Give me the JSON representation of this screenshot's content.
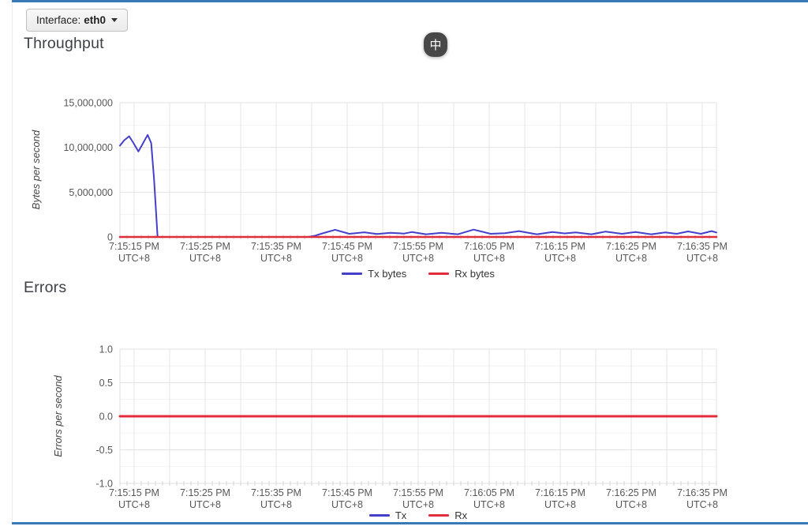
{
  "page": {
    "interface_button": {
      "label_prefix": "Interface: ",
      "value": "eth0"
    },
    "ime_badge": "中",
    "accent_color": "#3a79b8"
  },
  "chart_data": [
    {
      "type": "line",
      "title": "Throughput",
      "ylabel": "Bytes per second",
      "ylim": [
        0,
        15000000
      ],
      "yticks": [
        {
          "v": 0,
          "label": "0"
        },
        {
          "v": 5000000,
          "label": "5,000,000"
        },
        {
          "v": 10000000,
          "label": "10,000,000"
        },
        {
          "v": 15000000,
          "label": "15,000,000"
        }
      ],
      "yticks_minor": [
        2500000,
        7500000,
        12500000
      ],
      "xlim": [
        0,
        84
      ],
      "grid_start": 2,
      "grid_step": 5,
      "minor_tick_step": 1,
      "grid": true,
      "legend_position": "bottom",
      "xticks": [
        {
          "t": 2,
          "lines": [
            "7:15:15 PM",
            "UTC+8"
          ]
        },
        {
          "t": 12,
          "lines": [
            "7:15:25 PM",
            "UTC+8"
          ]
        },
        {
          "t": 22,
          "lines": [
            "7:15:35 PM",
            "UTC+8"
          ]
        },
        {
          "t": 32,
          "lines": [
            "7:15:45 PM",
            "UTC+8"
          ]
        },
        {
          "t": 42,
          "lines": [
            "7:15:55 PM",
            "UTC+8"
          ]
        },
        {
          "t": 52,
          "lines": [
            "7:16:05 PM",
            "UTC+8"
          ]
        },
        {
          "t": 62,
          "lines": [
            "7:16:15 PM",
            "UTC+8"
          ]
        },
        {
          "t": 72,
          "lines": [
            "7:16:25 PM",
            "UTC+8"
          ]
        },
        {
          "t": 82,
          "lines": [
            "7:16:35 PM",
            "UTC+8"
          ]
        }
      ],
      "series": [
        {
          "name": "Tx bytes",
          "color": "#4540cb",
          "width": 2,
          "points": [
            [
              0,
              10200000
            ],
            [
              0.6,
              10800000
            ],
            [
              1.3,
              11250000
            ],
            [
              1.9,
              10500000
            ],
            [
              2.6,
              9550000
            ],
            [
              3.2,
              10400000
            ],
            [
              3.9,
              11400000
            ],
            [
              4.4,
              10500000
            ],
            [
              4.8,
              6500000
            ],
            [
              5.3,
              0
            ],
            [
              26.5,
              0
            ],
            [
              27.5,
              150000
            ],
            [
              28.5,
              400000
            ],
            [
              30.3,
              800000
            ],
            [
              32.3,
              350000
            ],
            [
              34.4,
              520000
            ],
            [
              36.2,
              330000
            ],
            [
              38.1,
              470000
            ],
            [
              40.0,
              380000
            ],
            [
              41.1,
              550000
            ],
            [
              43.1,
              300000
            ],
            [
              45.3,
              460000
            ],
            [
              47.6,
              300000
            ],
            [
              49.8,
              820000
            ],
            [
              52.2,
              350000
            ],
            [
              54.2,
              420000
            ],
            [
              56.2,
              650000
            ],
            [
              58.7,
              300000
            ],
            [
              60.9,
              550000
            ],
            [
              62.6,
              400000
            ],
            [
              64.2,
              500000
            ],
            [
              66.4,
              300000
            ],
            [
              68.4,
              600000
            ],
            [
              70.7,
              350000
            ],
            [
              72.6,
              550000
            ],
            [
              74.8,
              300000
            ],
            [
              76.8,
              500000
            ],
            [
              78.4,
              350000
            ],
            [
              80.0,
              620000
            ],
            [
              81.8,
              350000
            ],
            [
              83.3,
              650000
            ],
            [
              84,
              500000
            ]
          ]
        },
        {
          "name": "Rx bytes",
          "color": "#e12d39",
          "width": 2.5,
          "points": [
            [
              0,
              0
            ],
            [
              84,
              0
            ]
          ]
        }
      ]
    },
    {
      "type": "line",
      "title": "Errors",
      "ylabel": "Errors per second",
      "ylim": [
        -1,
        1
      ],
      "yticks": [
        {
          "v": 1,
          "label": "1.0"
        },
        {
          "v": 0.5,
          "label": "0.5"
        },
        {
          "v": 0,
          "label": "0.0"
        },
        {
          "v": -0.5,
          "label": "-0.5"
        },
        {
          "v": -1,
          "label": "-1.0"
        }
      ],
      "yticks_minor": [
        0.75,
        0.25,
        -0.25,
        -0.75
      ],
      "xlim": [
        0,
        84
      ],
      "grid_start": 2,
      "grid_step": 5,
      "minor_tick_step": 1,
      "grid": true,
      "legend_position": "bottom",
      "xticks": [
        {
          "t": 2,
          "lines": [
            "7:15:15 PM",
            "UTC+8"
          ]
        },
        {
          "t": 12,
          "lines": [
            "7:15:25 PM",
            "UTC+8"
          ]
        },
        {
          "t": 22,
          "lines": [
            "7:15:35 PM",
            "UTC+8"
          ]
        },
        {
          "t": 32,
          "lines": [
            "7:15:45 PM",
            "UTC+8"
          ]
        },
        {
          "t": 42,
          "lines": [
            "7:15:55 PM",
            "UTC+8"
          ]
        },
        {
          "t": 52,
          "lines": [
            "7:16:05 PM",
            "UTC+8"
          ]
        },
        {
          "t": 62,
          "lines": [
            "7:16:15 PM",
            "UTC+8"
          ]
        },
        {
          "t": 72,
          "lines": [
            "7:16:25 PM",
            "UTC+8"
          ]
        },
        {
          "t": 82,
          "lines": [
            "7:16:35 PM",
            "UTC+8"
          ]
        }
      ],
      "series": [
        {
          "name": "Tx",
          "color": "#4540cb",
          "width": 2,
          "points": [
            [
              0,
              0
            ],
            [
              84,
              0
            ]
          ]
        },
        {
          "name": "Rx",
          "color": "#e12d39",
          "width": 3,
          "points": [
            [
              0,
              0
            ],
            [
              84,
              0
            ]
          ]
        }
      ]
    }
  ]
}
